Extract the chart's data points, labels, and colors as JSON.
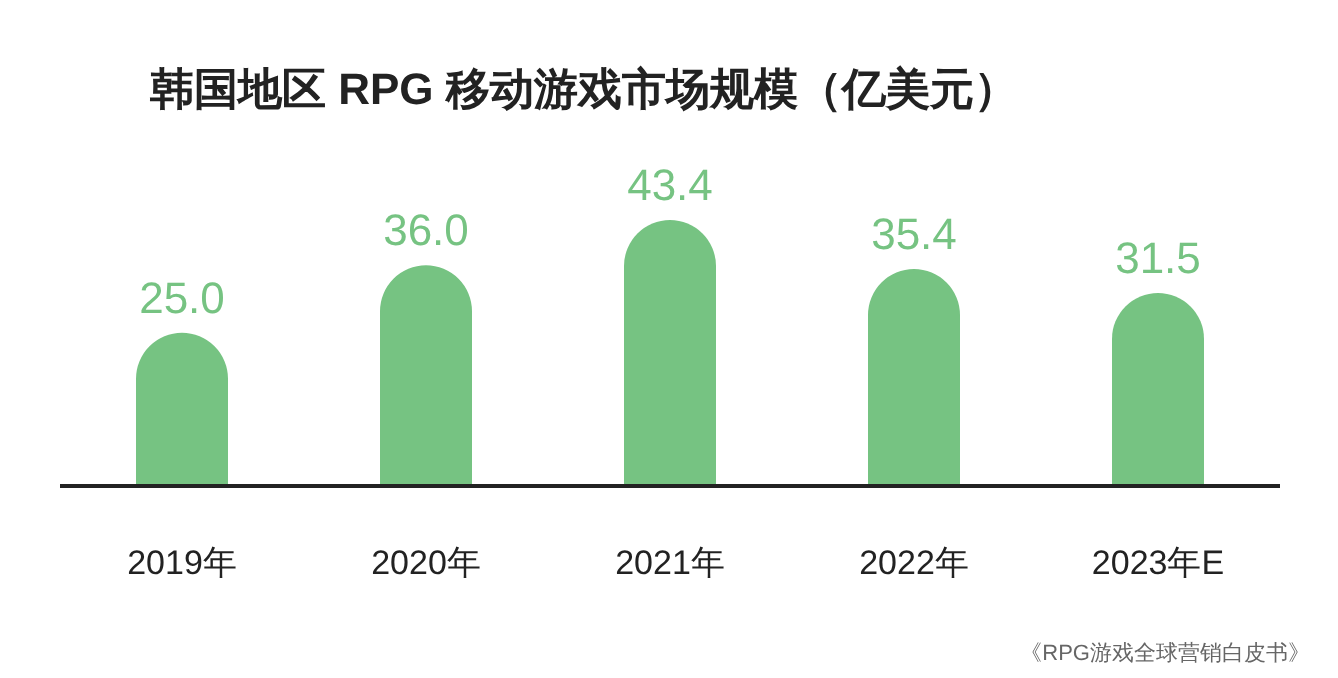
{
  "chart_data": {
    "type": "bar",
    "title": "韩国地区 RPG 移动游戏市场规模（亿美元）",
    "categories": [
      "2019年",
      "2020年",
      "2021年",
      "2022年",
      "2023年E"
    ],
    "series": [
      {
        "color": "#76c382",
        "values": [
          25.0,
          36.0,
          43.4,
          35.4,
          31.5
        ],
        "value_labels": [
          "25.0",
          "36.0",
          "43.4",
          "35.4",
          "31.5"
        ]
      }
    ],
    "annotations": [
      "《RPG游戏全球营销白皮书》"
    ]
  }
}
